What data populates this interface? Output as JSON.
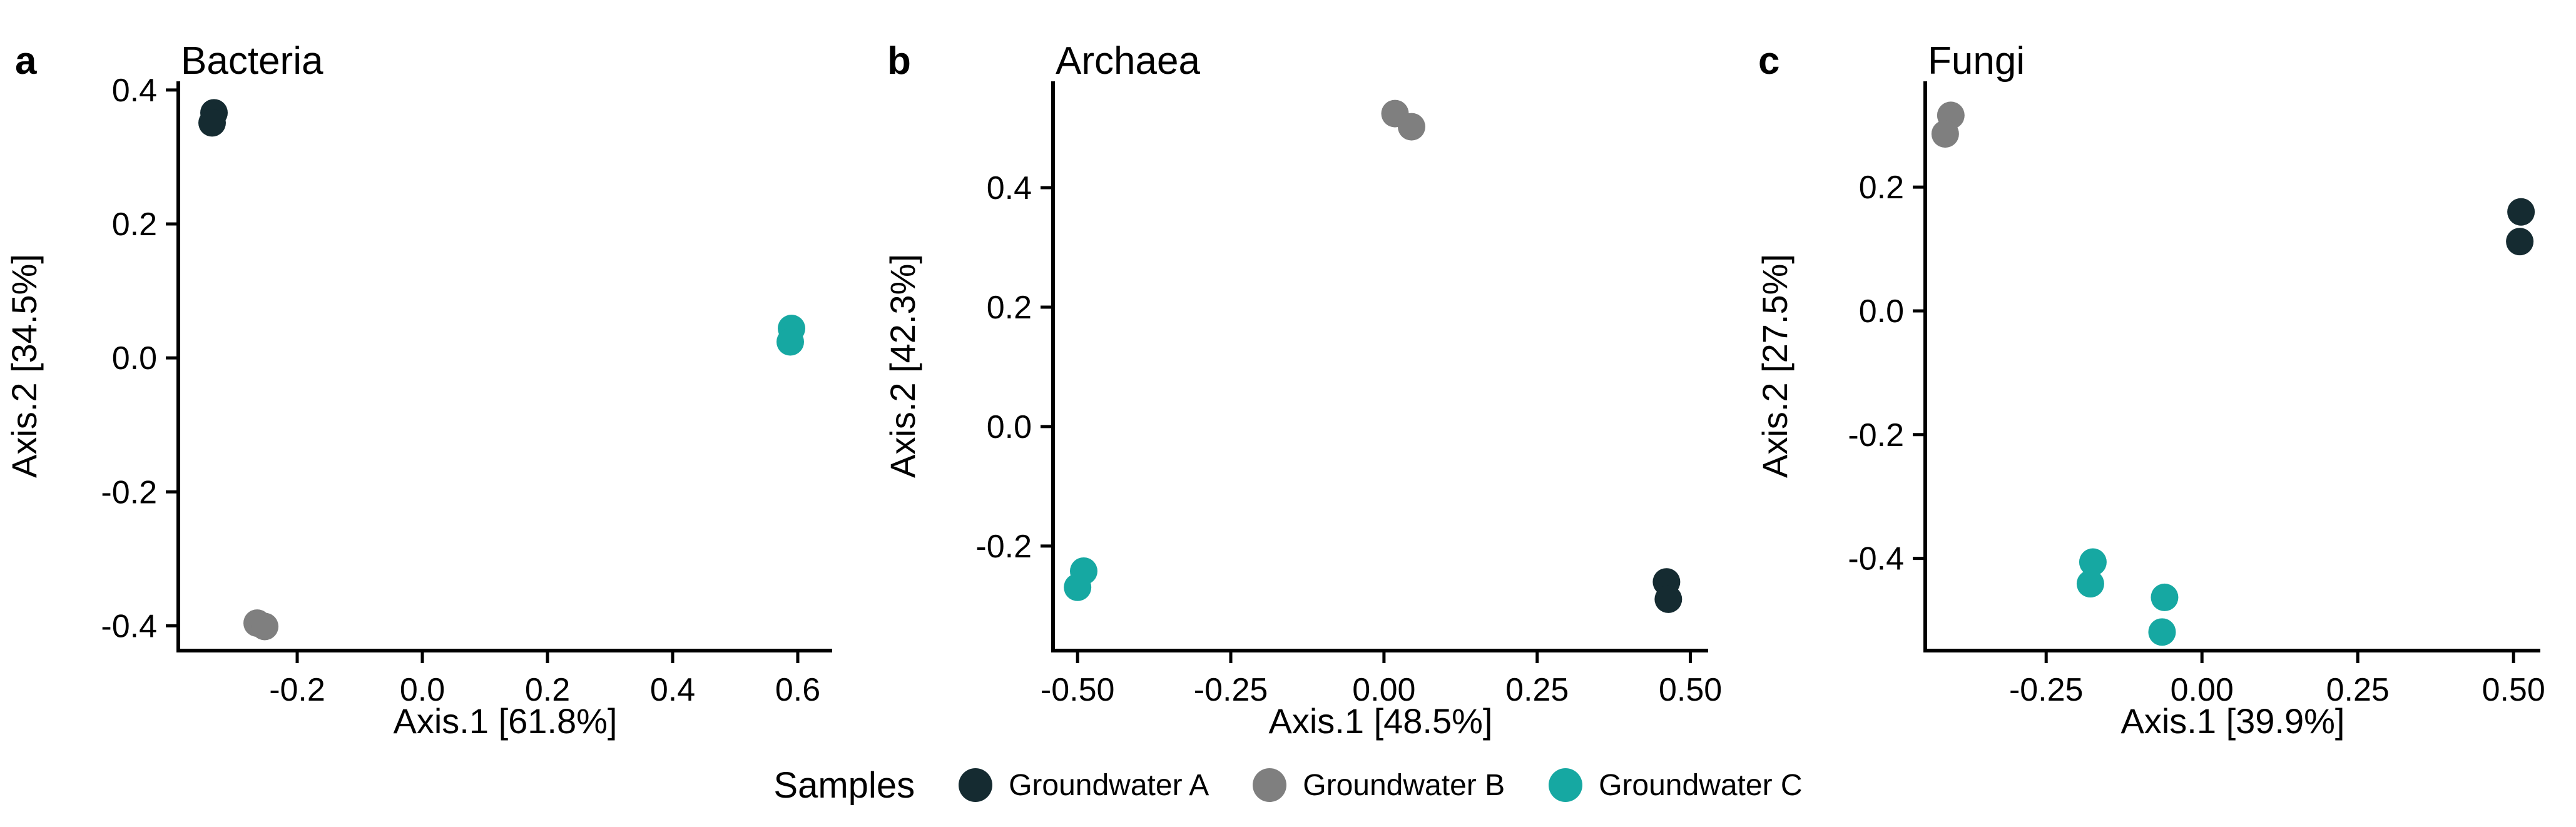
{
  "figure": {
    "background": "#ffffff",
    "axis_color": "#000000",
    "text_color": "#000000"
  },
  "legend": {
    "title": "Samples",
    "items": [
      {
        "label": "Groundwater A",
        "color": "#152B31"
      },
      {
        "label": "Groundwater B",
        "color": "#7F7F7F"
      },
      {
        "label": "Groundwater C",
        "color": "#16A8A2"
      }
    ]
  },
  "chart_data": [
    {
      "type": "scatter",
      "panel_label": "a",
      "title": "Bacteria",
      "xlabel": "Axis.1  [61.8%]",
      "ylabel": "Axis.2  [34.5%]",
      "xlim": [
        -0.39,
        0.655
      ],
      "ylim": [
        -0.437,
        0.413
      ],
      "grid": false,
      "xticks": [
        {
          "value": -0.2,
          "label": "-0.2"
        },
        {
          "value": 0.0,
          "label": "0.0"
        },
        {
          "value": 0.2,
          "label": "0.2"
        },
        {
          "value": 0.4,
          "label": "0.4"
        },
        {
          "value": 0.6,
          "label": "0.6"
        }
      ],
      "yticks": [
        {
          "value": -0.4,
          "label": "-0.4"
        },
        {
          "value": -0.2,
          "label": "-0.2"
        },
        {
          "value": 0.0,
          "label": "0.0"
        },
        {
          "value": 0.2,
          "label": "0.2"
        },
        {
          "value": 0.4,
          "label": "0.4"
        }
      ],
      "series": [
        {
          "name": "Groundwater A",
          "color": "#152B31",
          "points": [
            [
              -0.333,
              0.366
            ],
            [
              -0.336,
              0.351
            ]
          ]
        },
        {
          "name": "Groundwater B",
          "color": "#7F7F7F",
          "points": [
            [
              -0.264,
              -0.396
            ],
            [
              -0.252,
              -0.401
            ]
          ]
        },
        {
          "name": "Groundwater C",
          "color": "#16A8A2",
          "points": [
            [
              0.59,
              0.044
            ],
            [
              0.588,
              0.024
            ]
          ]
        }
      ]
    },
    {
      "type": "scatter",
      "panel_label": "b",
      "title": "Archaea",
      "xlabel": "Axis.1  [48.5%]",
      "ylabel": "Axis.2  [42.3%]",
      "xlim": [
        -0.54,
        0.529
      ],
      "ylim": [
        -0.375,
        0.578
      ],
      "grid": false,
      "xticks": [
        {
          "value": -0.5,
          "label": "-0.50"
        },
        {
          "value": -0.25,
          "label": "-0.25"
        },
        {
          "value": 0.0,
          "label": "0.00"
        },
        {
          "value": 0.25,
          "label": "0.25"
        },
        {
          "value": 0.5,
          "label": "0.50"
        }
      ],
      "yticks": [
        {
          "value": -0.2,
          "label": "-0.2"
        },
        {
          "value": 0.0,
          "label": "0.0"
        },
        {
          "value": 0.2,
          "label": "0.2"
        },
        {
          "value": 0.4,
          "label": "0.4"
        }
      ],
      "series": [
        {
          "name": "Groundwater A",
          "color": "#152B31",
          "points": [
            [
              0.461,
              -0.26
            ],
            [
              0.464,
              -0.289
            ]
          ]
        },
        {
          "name": "Groundwater B",
          "color": "#7F7F7F",
          "points": [
            [
              0.018,
              0.524
            ],
            [
              0.045,
              0.502
            ]
          ]
        },
        {
          "name": "Groundwater C",
          "color": "#16A8A2",
          "points": [
            [
              -0.49,
              -0.242
            ],
            [
              -0.5,
              -0.269
            ]
          ]
        }
      ]
    },
    {
      "type": "scatter",
      "panel_label": "c",
      "title": "Fungi",
      "xlabel": "Axis.1  [39.9%]",
      "ylabel": "Axis.2  [27.5%]",
      "xlim": [
        -0.444,
        0.543
      ],
      "ylim": [
        -0.549,
        0.371
      ],
      "grid": false,
      "xticks": [
        {
          "value": -0.25,
          "label": "-0.25"
        },
        {
          "value": 0.0,
          "label": "0.00"
        },
        {
          "value": 0.25,
          "label": "0.25"
        },
        {
          "value": 0.5,
          "label": "0.50"
        }
      ],
      "yticks": [
        {
          "value": -0.4,
          "label": "-0.4"
        },
        {
          "value": -0.2,
          "label": "-0.2"
        },
        {
          "value": 0.0,
          "label": "0.0"
        },
        {
          "value": 0.2,
          "label": "0.2"
        }
      ],
      "series": [
        {
          "name": "Groundwater A",
          "color": "#152B31",
          "points": [
            [
              0.512,
              0.16
            ],
            [
              0.51,
              0.112
            ]
          ]
        },
        {
          "name": "Groundwater B",
          "color": "#7F7F7F",
          "points": [
            [
              -0.403,
              0.316
            ],
            [
              -0.412,
              0.286
            ]
          ]
        },
        {
          "name": "Groundwater C",
          "color": "#16A8A2",
          "points": [
            [
              -0.175,
              -0.406
            ],
            [
              -0.179,
              -0.441
            ],
            [
              -0.06,
              -0.463
            ],
            [
              -0.064,
              -0.519
            ]
          ]
        }
      ]
    }
  ]
}
